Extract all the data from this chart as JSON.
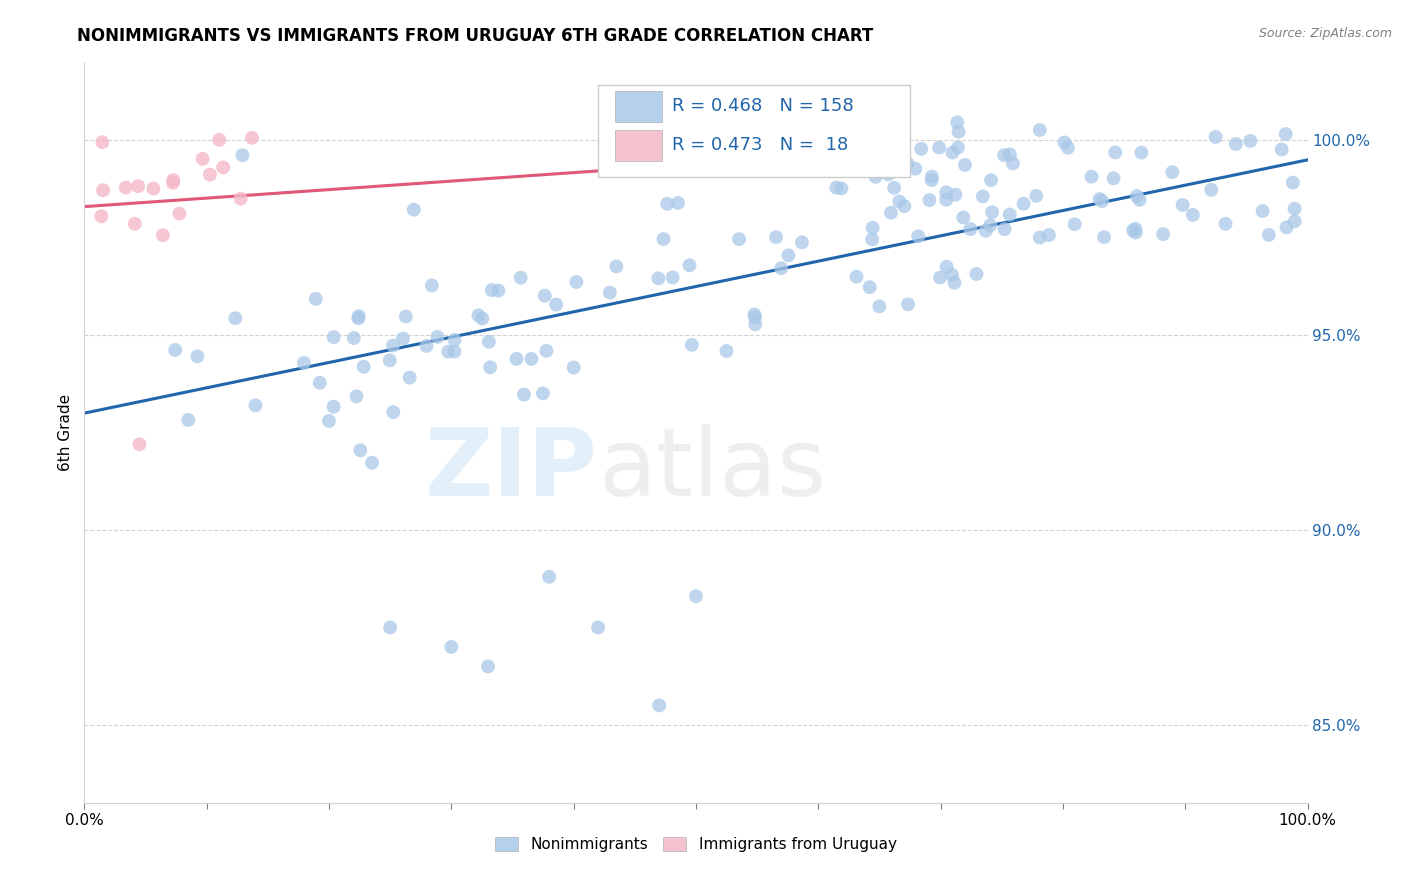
{
  "title": "NONIMMIGRANTS VS IMMIGRANTS FROM URUGUAY 6TH GRADE CORRELATION CHART",
  "source": "Source: ZipAtlas.com",
  "ylabel": "6th Grade",
  "xlim": [
    0.0,
    100.0
  ],
  "ylim": [
    83.0,
    102.0
  ],
  "yticks": [
    85.0,
    90.0,
    95.0,
    100.0
  ],
  "ytick_labels": [
    "85.0%",
    "90.0%",
    "95.0%",
    "100.0%"
  ],
  "xtick_positions": [
    0,
    10,
    20,
    30,
    40,
    50,
    60,
    70,
    80,
    90,
    100
  ],
  "blue_color": "#a8c8e8",
  "pink_color": "#f4b8c8",
  "blue_line_color": "#2166ac",
  "pink_line_color": "#e05878",
  "legend_text_color": "#2166ac",
  "legend_r_blue": "R = 0.468",
  "legend_n_blue": "N = 158",
  "legend_r_pink": "R = 0.473",
  "legend_n_pink": "N =  18",
  "blue_trend_x0": 0.0,
  "blue_trend_y0": 93.0,
  "blue_trend_x1": 100.0,
  "blue_trend_y1": 99.5,
  "pink_trend_x0": 0.0,
  "pink_trend_y0": 98.3,
  "pink_trend_x1": 55.0,
  "pink_trend_y1": 99.5
}
